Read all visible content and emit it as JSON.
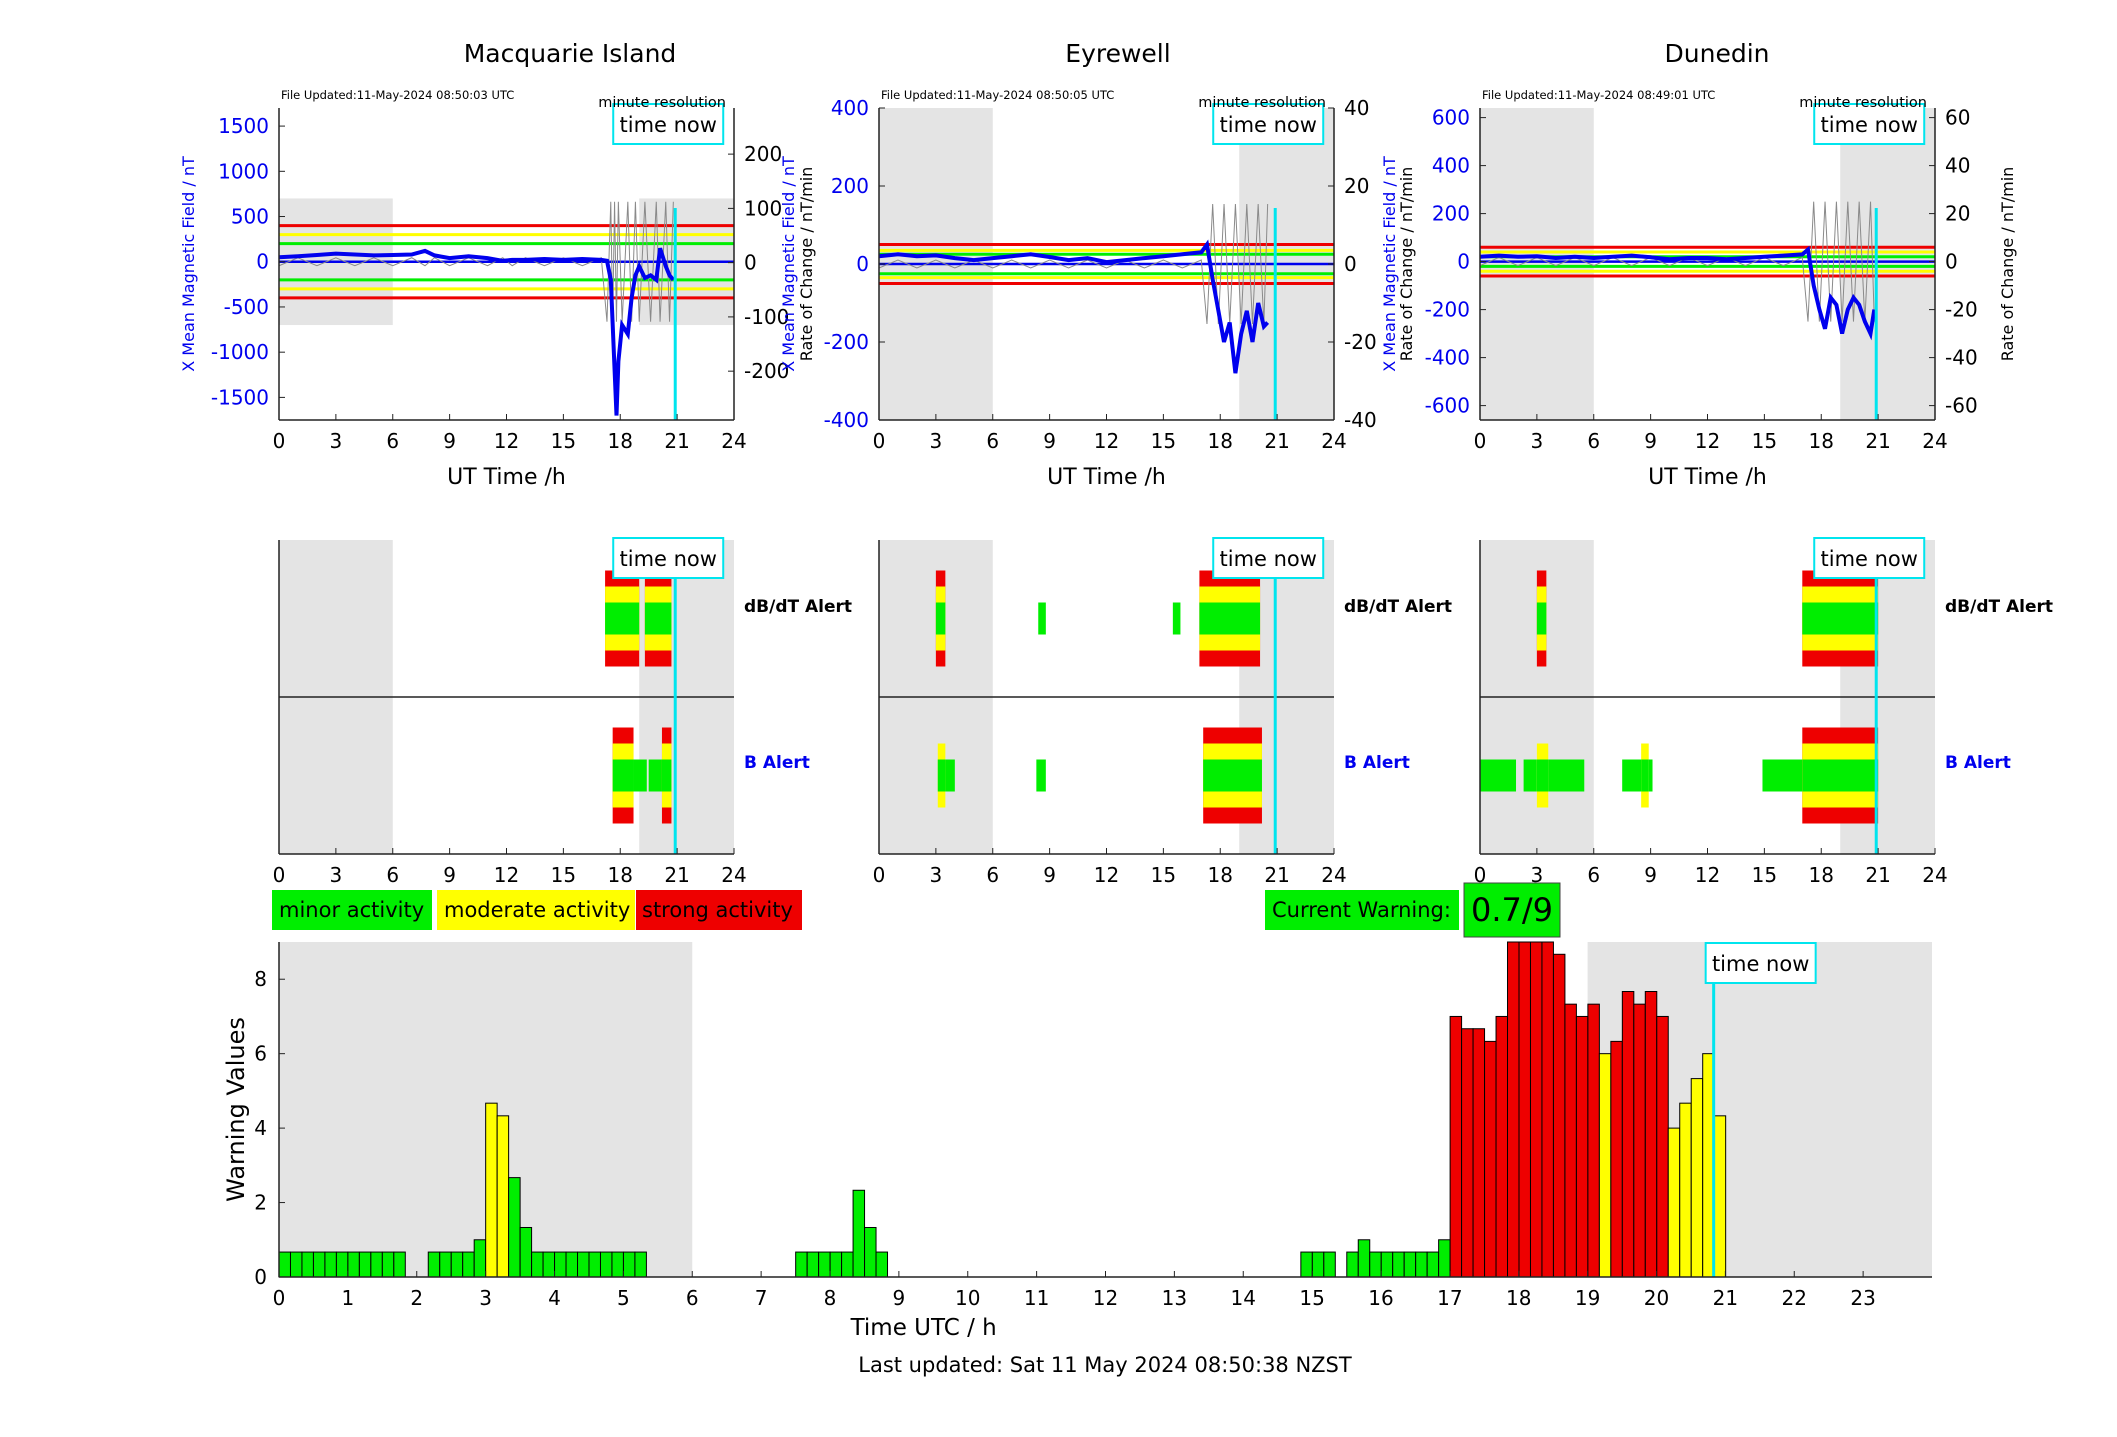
{
  "top_titles": [
    "Macquarie Island",
    "Eyrewell",
    "Dunedin"
  ],
  "file_updated": [
    "File Updated:11-May-2024 08:50:03 UTC",
    "File Updated:11-May-2024 08:50:05 UTC",
    "File Updated:11-May-2024 08:49:01 UTC"
  ],
  "minute_resolution_label": "minute resolution",
  "time_now_label": "time now",
  "ut_xlabel": "UT Time /h",
  "left_ylabel": "X Mean Magnetic Field / nT",
  "right_ylabel": "Rate of Change / nT/min",
  "right_ylabel_short": "Rate of Change / nT/min",
  "alert_rows": {
    "dbdt": "dB/dT Alert",
    "b": "B Alert"
  },
  "legend": {
    "minor": "minor activity",
    "moderate": "moderate activity",
    "strong": "strong activity"
  },
  "current_warning": {
    "label": "Current Warning:",
    "value": "0.7/9"
  },
  "footer": "Last updated: Sat 11 May 2024 08:50:38 NZST",
  "colors": {
    "green": "#00ee00",
    "yellow": "#ffff00",
    "red": "#ee0000",
    "blue": "#0000ee",
    "cyan": "#00e5ee",
    "shade": "#e4e4e4"
  },
  "chart_data": [
    {
      "type": "line",
      "station": "Macquarie Island",
      "xlim": [
        0,
        24
      ],
      "xticks": [
        0,
        3,
        6,
        9,
        12,
        15,
        18,
        21,
        24
      ],
      "ylim_left": [
        -1750,
        1700
      ],
      "yticks_left": [
        -1500,
        -1000,
        -500,
        0,
        500,
        1000,
        1500
      ],
      "ylim_right": [
        -290,
        285
      ],
      "yticks_right": [
        -200,
        -100,
        0,
        100,
        200
      ],
      "thresholds_left": {
        "green": [
          -200,
          200
        ],
        "yellow": [
          -300,
          300
        ],
        "red": [
          -400,
          400
        ]
      },
      "shade_y": [
        -700,
        700
      ],
      "time_now": 20.9,
      "series": [
        {
          "values_x": [
            0,
            1,
            2,
            3,
            4,
            5,
            6,
            7,
            7.7,
            8.2,
            9,
            10,
            11,
            11.8,
            12.3,
            13,
            14,
            15,
            16,
            17,
            17.3,
            17.5,
            17.6,
            17.7,
            17.8,
            17.9,
            18.1,
            18.4,
            18.6,
            18.8,
            19,
            19.3,
            19.6,
            19.9,
            20.1,
            20.4,
            20.6,
            20.8
          ],
          "values_y": [
            50,
            60,
            75,
            90,
            80,
            70,
            75,
            80,
            120,
            70,
            40,
            60,
            40,
            10,
            20,
            20,
            30,
            20,
            30,
            20,
            10,
            -200,
            -700,
            -1200,
            -1700,
            -1100,
            -700,
            -800,
            -400,
            -150,
            -50,
            -180,
            -150,
            -200,
            150,
            -50,
            -150,
            -200
          ]
        }
      ]
    },
    {
      "type": "line",
      "station": "Eyrewell",
      "xlim": [
        0,
        24
      ],
      "xticks": [
        0,
        3,
        6,
        9,
        12,
        15,
        18,
        21,
        24
      ],
      "ylim_left": [
        -400,
        400
      ],
      "yticks_left": [
        -400,
        -200,
        0,
        200,
        400
      ],
      "ylim_right": [
        -40,
        40
      ],
      "yticks_right": [
        -40,
        -20,
        0,
        20,
        40
      ],
      "thresholds_left": {
        "green": [
          -25,
          25
        ],
        "yellow": [
          -35,
          35
        ],
        "red": [
          -50,
          50
        ]
      },
      "shade_y": [
        -400,
        400
      ],
      "time_now": 20.9,
      "series": [
        {
          "values_x": [
            0,
            1,
            2,
            3,
            4,
            5,
            6,
            7,
            8,
            9,
            10,
            11,
            12,
            13,
            14,
            15,
            16,
            17,
            17.3,
            17.6,
            17.9,
            18.2,
            18.5,
            18.8,
            19.1,
            19.4,
            19.7,
            20,
            20.3,
            20.5
          ],
          "values_y": [
            20,
            25,
            20,
            22,
            15,
            10,
            15,
            20,
            25,
            18,
            10,
            15,
            5,
            10,
            15,
            20,
            25,
            30,
            50,
            -40,
            -120,
            -200,
            -150,
            -280,
            -180,
            -120,
            -200,
            -100,
            -160,
            -150
          ]
        }
      ]
    },
    {
      "type": "line",
      "station": "Dunedin",
      "xlim": [
        0,
        24
      ],
      "xticks": [
        0,
        3,
        6,
        9,
        12,
        15,
        18,
        21,
        24
      ],
      "ylim_left": [
        -660,
        640
      ],
      "yticks_left": [
        -600,
        -400,
        -200,
        0,
        200,
        400,
        600
      ],
      "ylim_right": [
        -66,
        64
      ],
      "yticks_right": [
        -60,
        -40,
        -20,
        0,
        20,
        40,
        60
      ],
      "thresholds_left": {
        "green": [
          -20,
          20
        ],
        "yellow": [
          -40,
          40
        ],
        "red": [
          -60,
          60
        ]
      },
      "shade_y": [
        -660,
        640
      ],
      "time_now": 20.9,
      "series": [
        {
          "values_x": [
            0,
            1,
            2,
            3,
            4,
            5,
            6,
            7,
            8,
            9,
            10,
            11,
            12,
            13,
            14,
            15,
            16,
            17,
            17.3,
            17.6,
            17.9,
            18.2,
            18.5,
            18.8,
            19.1,
            19.4,
            19.7,
            20,
            20.3,
            20.6,
            20.8
          ],
          "values_y": [
            20,
            25,
            20,
            22,
            15,
            20,
            15,
            20,
            25,
            18,
            10,
            15,
            15,
            10,
            15,
            20,
            25,
            30,
            50,
            -100,
            -200,
            -280,
            -150,
            -180,
            -300,
            -200,
            -150,
            -180,
            -250,
            -300,
            -200
          ]
        }
      ]
    },
    {
      "type": "alert_strip",
      "station": "Macquarie Island",
      "xlim": [
        0,
        24
      ],
      "xticks": [
        0,
        3,
        6,
        9,
        12,
        15,
        18,
        21,
        24
      ],
      "time_now": 20.9,
      "dbdt": [
        [
          17.2,
          19.0,
          3
        ],
        [
          19.3,
          20.7,
          3
        ]
      ],
      "b": [
        [
          17.6,
          18.7,
          3
        ],
        [
          18.7,
          19.4,
          1
        ],
        [
          19.5,
          20.2,
          1
        ],
        [
          20.2,
          20.7,
          3
        ]
      ]
    },
    {
      "type": "alert_strip",
      "station": "Eyrewell",
      "xlim": [
        0,
        24
      ],
      "xticks": [
        0,
        3,
        6,
        9,
        12,
        15,
        18,
        21,
        24
      ],
      "time_now": 20.9,
      "dbdt": [
        [
          3.0,
          3.5,
          3
        ],
        [
          8.4,
          8.8,
          1
        ],
        [
          15.5,
          15.9,
          1
        ],
        [
          16.9,
          20.1,
          3
        ]
      ],
      "b": [
        [
          3.1,
          3.5,
          2
        ],
        [
          3.5,
          4.0,
          1
        ],
        [
          8.3,
          8.8,
          1
        ],
        [
          17.1,
          20.2,
          3
        ]
      ]
    },
    {
      "type": "alert_strip",
      "station": "Dunedin",
      "xlim": [
        0,
        24
      ],
      "xticks": [
        0,
        3,
        6,
        9,
        12,
        15,
        18,
        21,
        24
      ],
      "time_now": 20.9,
      "dbdt": [
        [
          3.0,
          3.5,
          3
        ],
        [
          17.0,
          21.0,
          3
        ]
      ],
      "b": [
        [
          0.0,
          1.9,
          1
        ],
        [
          2.3,
          3.0,
          1
        ],
        [
          3.0,
          3.6,
          2
        ],
        [
          3.6,
          5.5,
          1
        ],
        [
          7.5,
          8.5,
          1
        ],
        [
          8.5,
          8.9,
          2
        ],
        [
          8.9,
          9.1,
          1
        ],
        [
          14.9,
          17.0,
          1
        ],
        [
          17.0,
          21.0,
          3
        ]
      ]
    },
    {
      "type": "bar",
      "title": "",
      "xlabel": "Time UTC / h",
      "ylabel": "Warning Values",
      "xlim": [
        0,
        24
      ],
      "xticks": [
        0,
        1,
        2,
        3,
        4,
        5,
        6,
        7,
        8,
        9,
        10,
        11,
        12,
        13,
        14,
        15,
        16,
        17,
        18,
        19,
        20,
        21,
        22,
        23
      ],
      "ylim": [
        0,
        9
      ],
      "yticks": [
        0,
        2,
        4,
        6,
        8
      ],
      "bin_width_h": 0.1667,
      "time_now": 20.83,
      "values": [
        0.67,
        0.67,
        0.67,
        0.67,
        0.67,
        0.67,
        0.67,
        0.67,
        0.67,
        0.67,
        0.67,
        0,
        0,
        0.67,
        0.67,
        0.67,
        0.67,
        1.0,
        4.67,
        4.33,
        2.67,
        1.33,
        0.67,
        0.67,
        0.67,
        0.67,
        0.67,
        0.67,
        0.67,
        0.67,
        0.67,
        0.67,
        0,
        0,
        0,
        0,
        0,
        0,
        0,
        0,
        0,
        0,
        0,
        0,
        0,
        0.67,
        0.67,
        0.67,
        0.67,
        0.67,
        2.33,
        1.33,
        0.67,
        0,
        0,
        0,
        0,
        0,
        0,
        0,
        0,
        0,
        0,
        0,
        0,
        0,
        0,
        0,
        0,
        0,
        0,
        0,
        0,
        0,
        0,
        0,
        0,
        0,
        0,
        0,
        0,
        0,
        0,
        0,
        0,
        0,
        0,
        0,
        0,
        0.67,
        0.67,
        0.67,
        0,
        0.67,
        1.0,
        0.67,
        0.67,
        0.67,
        0.67,
        0.67,
        0.67,
        1.0,
        7.0,
        6.67,
        6.67,
        6.33,
        7.0,
        9.0,
        9.0,
        9.0,
        9.0,
        8.67,
        7.33,
        7.0,
        7.33,
        6.0,
        6.33,
        7.67,
        7.33,
        7.67,
        7.0,
        4.0,
        4.67,
        5.33,
        6.0,
        4.33
      ]
    }
  ]
}
